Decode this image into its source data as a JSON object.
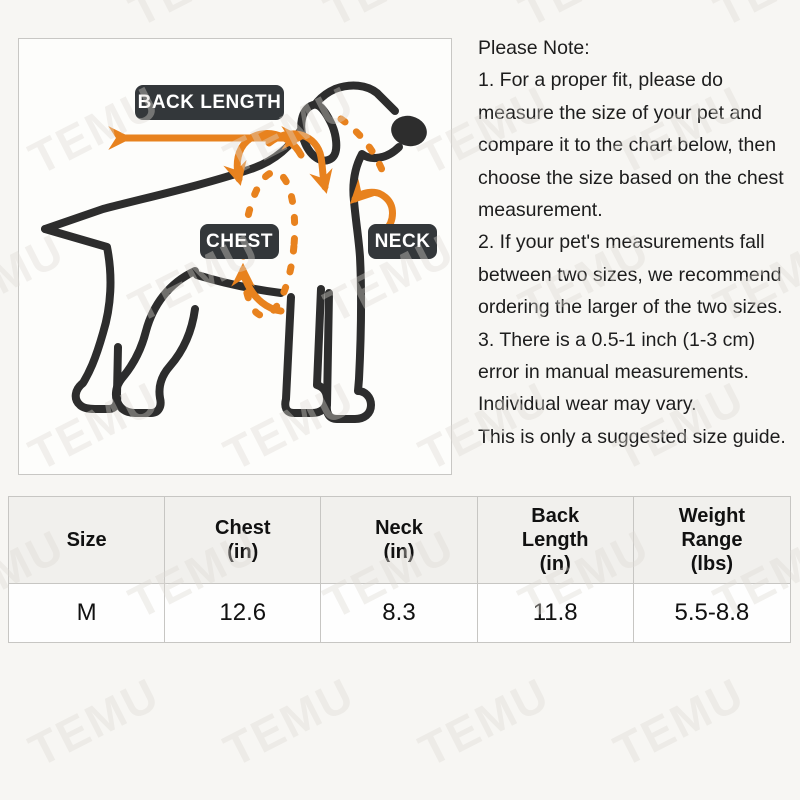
{
  "diagram": {
    "back_length_label": "BACK LENGTH",
    "chest_label": "CHEST",
    "neck_label": "NECK"
  },
  "notes": {
    "title": "Please Note:",
    "items": [
      "1. For a proper fit, please do\nmeasure the size of your pet and\ncompare it to the chart below, then\nchoose the size based on the chest\nmeasurement.",
      "2. If your pet's measurements fall\nbetween two sizes, we recommend\nordering the larger of the two sizes.",
      "3. There is a 0.5-1 inch (1-3 cm)\nerror in manual measurements.\nIndividual wear may vary.",
      "This is only a suggested size guide."
    ]
  },
  "table": {
    "headers": [
      "Size",
      "Chest\n(in)",
      "Neck\n(in)",
      "Back\nLength\n(in)",
      "Weight\nRange\n(lbs)"
    ],
    "rows": [
      [
        "M",
        "12.6",
        "8.3",
        "11.8",
        "5.5-8.8"
      ]
    ]
  },
  "watermark": {
    "text": "TEMU"
  },
  "colors": {
    "accent_orange": "#E8821E",
    "badge_dark": "#33373A",
    "ink": "#2D2D2D"
  }
}
